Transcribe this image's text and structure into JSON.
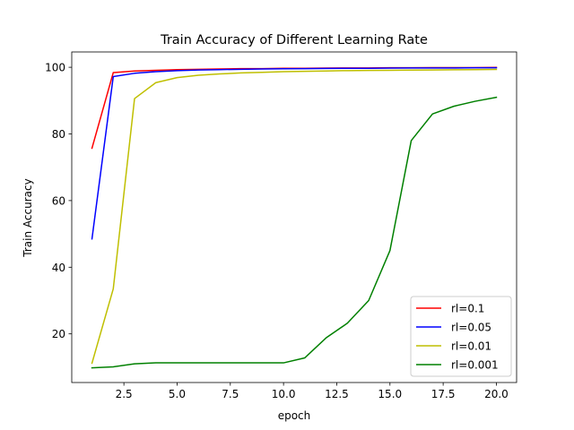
{
  "chart_data": {
    "type": "line",
    "title": "Train Accuracy of Different Learning Rate",
    "xlabel": "epoch",
    "ylabel": "Train Accuracy",
    "xlim": [
      0.05,
      20.95
    ],
    "ylim": [
      5.4,
      104.6
    ],
    "xticks": [
      2.5,
      5.0,
      7.5,
      10.0,
      12.5,
      15.0,
      17.5,
      20.0
    ],
    "xtick_labels": [
      "2.5",
      "5.0",
      "7.5",
      "10.0",
      "12.5",
      "15.0",
      "17.5",
      "20.0"
    ],
    "yticks": [
      20,
      40,
      60,
      80,
      100
    ],
    "ytick_labels": [
      "20",
      "40",
      "60",
      "80",
      "100"
    ],
    "grid": false,
    "legend_position": "lower-right",
    "x": [
      1,
      2,
      3,
      4,
      5,
      6,
      7,
      8,
      9,
      10,
      11,
      12,
      13,
      14,
      15,
      16,
      17,
      18,
      19,
      20
    ],
    "series": [
      {
        "name": "rl=0.1",
        "color": "#ff0000",
        "values": [
          75.7,
          98.4,
          98.9,
          99.1,
          99.3,
          99.4,
          99.5,
          99.6,
          99.6,
          99.7,
          99.7,
          99.75,
          99.8,
          99.8,
          99.85,
          99.85,
          99.9,
          99.9,
          99.9,
          99.95
        ]
      },
      {
        "name": "rl=0.05",
        "color": "#0000ff",
        "values": [
          48.5,
          97.2,
          98.2,
          98.7,
          99.0,
          99.2,
          99.3,
          99.4,
          99.5,
          99.55,
          99.6,
          99.65,
          99.7,
          99.7,
          99.75,
          99.8,
          99.8,
          99.8,
          99.85,
          99.85
        ]
      },
      {
        "name": "rl=0.01",
        "color": "#bfbf00",
        "values": [
          11.2,
          33.5,
          90.6,
          95.4,
          96.9,
          97.6,
          98.0,
          98.3,
          98.5,
          98.7,
          98.8,
          98.9,
          99.0,
          99.05,
          99.1,
          99.15,
          99.2,
          99.25,
          99.3,
          99.35
        ]
      },
      {
        "name": "rl=0.001",
        "color": "#008000",
        "values": [
          9.8,
          10.1,
          11.0,
          11.3,
          11.3,
          11.3,
          11.3,
          11.3,
          11.3,
          11.3,
          12.8,
          18.8,
          23.2,
          30.0,
          45.0,
          78.0,
          86.0,
          88.3,
          89.8,
          91.0
        ]
      }
    ]
  }
}
